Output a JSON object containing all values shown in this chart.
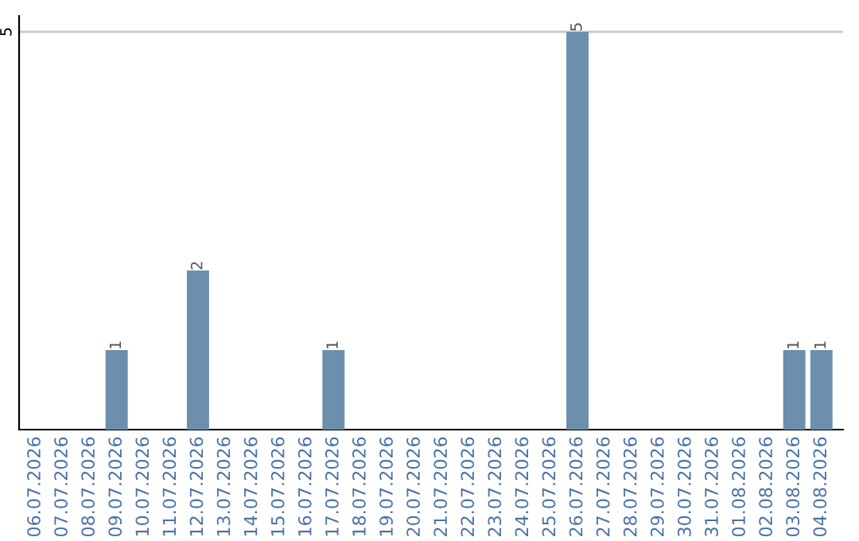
{
  "chart_data": {
    "type": "bar",
    "categories": [
      "06.07.2026",
      "07.07.2026",
      "08.07.2026",
      "09.07.2026",
      "10.07.2026",
      "11.07.2026",
      "12.07.2026",
      "13.07.2026",
      "14.07.2026",
      "15.07.2026",
      "16.07.2026",
      "17.07.2026",
      "18.07.2026",
      "19.07.2026",
      "20.07.2026",
      "21.07.2026",
      "22.07.2026",
      "23.07.2026",
      "24.07.2026",
      "25.07.2026",
      "26.07.2026",
      "27.07.2026",
      "28.07.2026",
      "29.07.2026",
      "30.07.2026",
      "31.07.2026",
      "01.08.2026",
      "02.08.2026",
      "03.08.2026",
      "04.08.2026"
    ],
    "values": [
      0,
      0,
      0,
      1,
      0,
      0,
      2,
      0,
      0,
      0,
      0,
      1,
      0,
      0,
      0,
      0,
      0,
      0,
      0,
      0,
      5,
      0,
      0,
      0,
      0,
      0,
      0,
      0,
      1,
      1
    ],
    "value_labels": [
      null,
      null,
      null,
      "1",
      null,
      null,
      "2",
      null,
      null,
      null,
      null,
      "1",
      null,
      null,
      null,
      null,
      null,
      null,
      null,
      null,
      "5",
      null,
      null,
      null,
      null,
      null,
      null,
      null,
      "1",
      "1"
    ],
    "color": "#6d8fae",
    "ylim": [
      0,
      5.2
    ],
    "yticks": [
      5
    ],
    "grid": "y"
  }
}
